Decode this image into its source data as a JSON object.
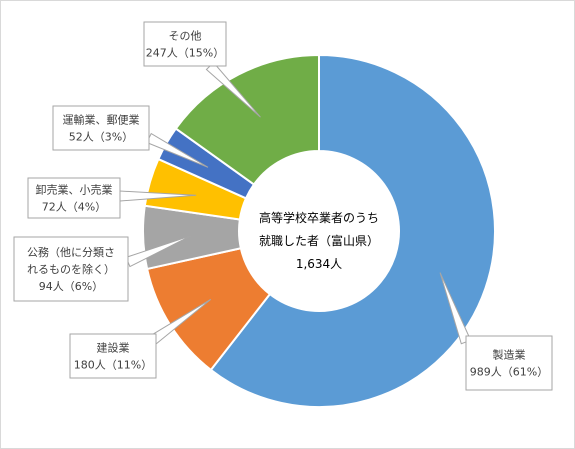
{
  "chart_data": {
    "type": "pie",
    "variant": "donut",
    "center_label": [
      "高等学校卒業者のうち",
      "就職した者（富山県）",
      "1,634人"
    ],
    "slices": [
      {
        "category": "製造業",
        "count_text": "989人",
        "percent_text": "（61%）",
        "value": 989,
        "percent": 61,
        "color": "#5b9bd5"
      },
      {
        "category": "建設業",
        "count_text": "180人",
        "percent_text": "（11%）",
        "value": 180,
        "percent": 11,
        "color": "#ed7d31"
      },
      {
        "category": "公務（他に分類されるものを除く）",
        "label_lines": [
          "公務（他に分類さ",
          "れるものを除く）"
        ],
        "count_text": "94人",
        "percent_text": "（6%）",
        "value": 94,
        "percent": 6,
        "color": "#a5a5a5"
      },
      {
        "category": "卸売業、小売業",
        "count_text": "72人",
        "percent_text": "（4%）",
        "value": 72,
        "percent": 4,
        "color": "#ffc000"
      },
      {
        "category": "運輸業、郵便業",
        "count_text": "52人",
        "percent_text": "（3%）",
        "value": 52,
        "percent": 3,
        "color": "#4472c4"
      },
      {
        "category": "その他",
        "count_text": "247人",
        "percent_text": "（15%）",
        "value": 247,
        "percent": 15,
        "color": "#70ad47"
      }
    ]
  }
}
